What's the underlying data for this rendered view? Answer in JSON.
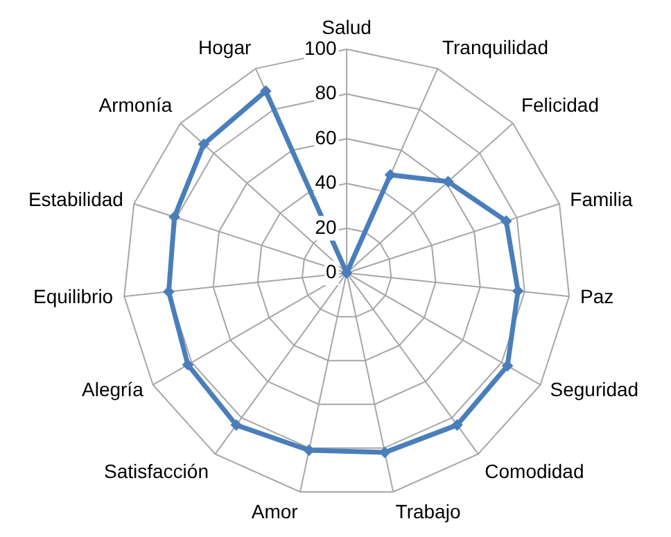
{
  "chart_data": {
    "type": "radar",
    "categories": [
      "Salud",
      "Tranquilidad",
      "Felicidad",
      "Familia",
      "Paz",
      "Seguridad",
      "Comodidad",
      "Trabajo",
      "Amor",
      "Satisfacción",
      "Alegría",
      "Equilibrio",
      "Estabilidad",
      "Armonía",
      "Hogar"
    ],
    "series": [
      {
        "color": "#4a7ebb",
        "values": [
          0,
          48,
          61,
          75,
          77,
          83,
          84,
          82,
          81,
          84,
          82,
          80,
          81,
          86,
          89
        ]
      }
    ],
    "ylim": [
      0,
      100
    ],
    "yticks": [
      0,
      20,
      40,
      60,
      80,
      100
    ],
    "grid": true,
    "marker": "diamond",
    "line_style": "solid"
  }
}
